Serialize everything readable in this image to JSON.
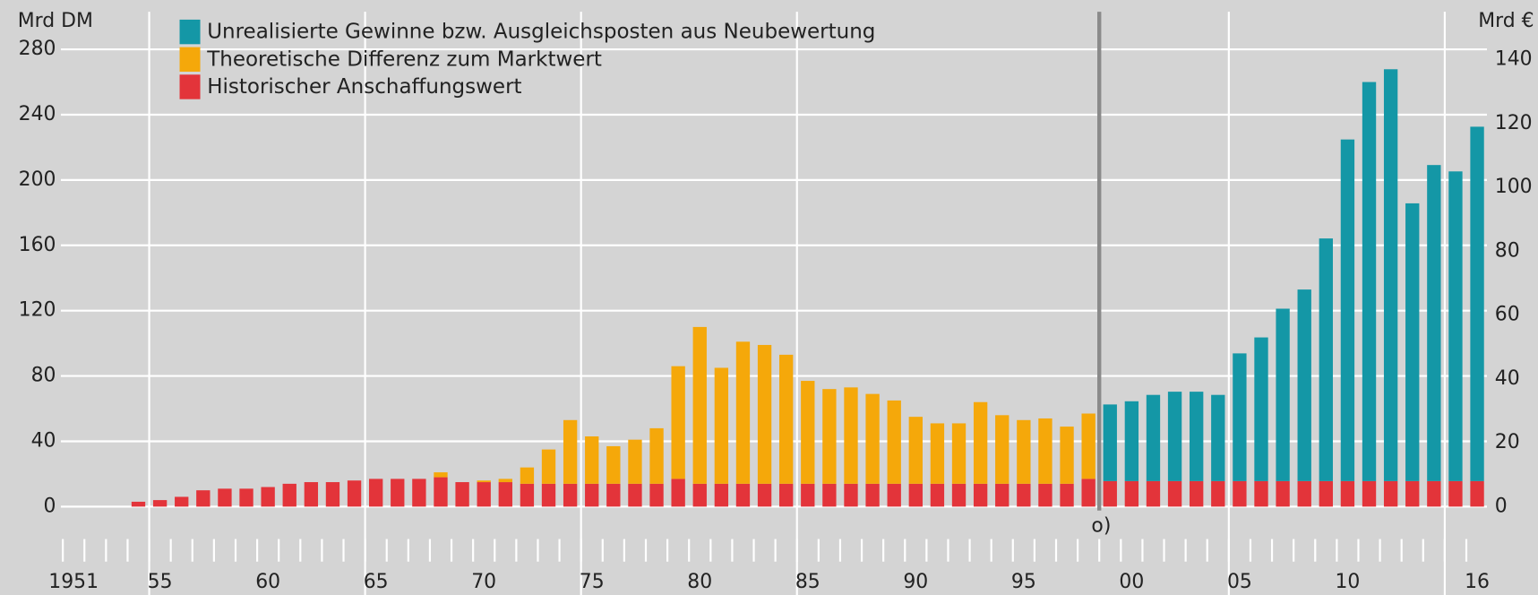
{
  "chart_data": [
    {
      "type": "bar",
      "stacked": true,
      "yaxis_side": "left",
      "ylabel": "Mrd DM",
      "categories": [
        "1951",
        null,
        null,
        null,
        "55",
        null,
        null,
        null,
        null,
        "60",
        null,
        null,
        null,
        null,
        "65",
        null,
        null,
        null,
        null,
        "70",
        null,
        null,
        null,
        null,
        "75",
        null,
        null,
        null,
        null,
        "80",
        null,
        null,
        null,
        null,
        "85",
        null,
        null,
        null,
        null,
        "90",
        null,
        null,
        null,
        null,
        "95",
        null,
        null,
        null
      ],
      "series": [
        {
          "name": "Historischer Anschaffungswert",
          "color": "#e3343a",
          "values": [
            null,
            null,
            null,
            3,
            4,
            6,
            10,
            11,
            11,
            12,
            14,
            15,
            15,
            16,
            17,
            17,
            17,
            18,
            15,
            15,
            15,
            14,
            14,
            14,
            14,
            14,
            14,
            14,
            17,
            14,
            14,
            14,
            14,
            14,
            14,
            14,
            14,
            14,
            14,
            14,
            14,
            14,
            14,
            14,
            14,
            14,
            14,
            17
          ]
        },
        {
          "name": "Theoretische Differenz zum Marktwert",
          "color": "#f5a80a",
          "values": [
            null,
            null,
            null,
            null,
            null,
            null,
            null,
            null,
            null,
            null,
            null,
            null,
            null,
            null,
            null,
            null,
            null,
            3,
            null,
            1,
            2,
            10,
            21,
            39,
            29,
            23,
            27,
            34,
            69,
            96,
            71,
            87,
            85,
            79,
            63,
            58,
            59,
            55,
            51,
            41,
            37,
            37,
            50,
            42,
            39,
            40,
            35,
            40
          ]
        }
      ],
      "ylim": [
        0,
        303
      ],
      "yticks": [
        0,
        40,
        80,
        120,
        160,
        200,
        240,
        280
      ],
      "grid": true
    },
    {
      "type": "bar",
      "stacked": true,
      "yaxis_side": "right",
      "ylabel": "Mrd €",
      "annotation": "o)",
      "categories": [
        null,
        "00",
        null,
        null,
        null,
        null,
        "05",
        null,
        null,
        null,
        null,
        "10",
        null,
        null,
        null,
        null,
        null,
        "16"
      ],
      "series": [
        {
          "name": "Historischer Anschaffungswert",
          "color": "#e3343a",
          "values": [
            8,
            8,
            8,
            8,
            8,
            8,
            8,
            8,
            8,
            8,
            8,
            8,
            8,
            8,
            8,
            8,
            8,
            8
          ]
        },
        {
          "name": "Unrealisierte Gewinne bzw. Ausgleichsposten aus Neubewertung",
          "color": "#1497a6",
          "values": [
            24,
            25,
            27,
            28,
            28,
            27,
            40,
            45,
            54,
            60,
            76,
            107,
            125,
            129,
            87,
            99,
            97,
            111
          ]
        }
      ],
      "ylim": [
        0,
        155
      ],
      "yticks": [
        0,
        20,
        40,
        60,
        80,
        100,
        120,
        140
      ],
      "grid": false
    }
  ]
}
